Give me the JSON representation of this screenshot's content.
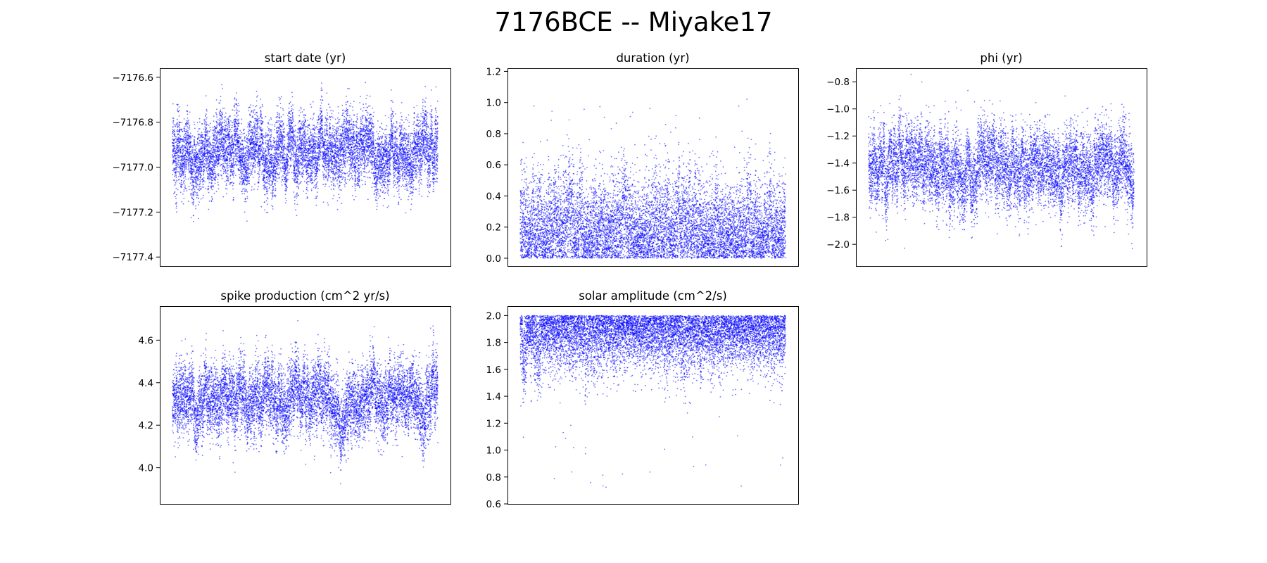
{
  "figure": {
    "suptitle": "7176BCE -- Miyake17"
  },
  "style": {
    "point_color": "#0000ff",
    "background": "#ffffff",
    "axis_color": "#000000"
  },
  "chart_data": [
    {
      "type": "scatter",
      "title": "start date (yr)",
      "xlabel": "",
      "ylabel": "",
      "ylim": [
        -7177.44,
        -7176.56
      ],
      "yticks": [
        -7176.6,
        -7176.8,
        -7177.0,
        -7177.2,
        -7177.4
      ],
      "ytick_labels": [
        "−7176.6",
        "−7176.8",
        "−7177.0",
        "−7177.2",
        "−7177.4"
      ],
      "x_ticks_visible": false,
      "samples": 10000,
      "center": -7176.93,
      "spread": 0.09,
      "min": -7177.39,
      "max": -7176.57
    },
    {
      "type": "scatter",
      "title": "duration (yr)",
      "xlabel": "",
      "ylabel": "",
      "ylim": [
        -0.05,
        1.22
      ],
      "yticks": [
        0.0,
        0.2,
        0.4,
        0.6,
        0.8,
        1.0,
        1.2
      ],
      "ytick_labels": [
        "0.0",
        "0.2",
        "0.4",
        "0.6",
        "0.8",
        "1.0",
        "1.2"
      ],
      "x_ticks_visible": false,
      "samples": 10000,
      "center": 0.2,
      "spread": 0.18,
      "min": 0.0,
      "max": 1.17
    },
    {
      "type": "scatter",
      "title": "phi (yr)",
      "xlabel": "",
      "ylabel": "",
      "ylim": [
        -2.16,
        -0.7
      ],
      "yticks": [
        -0.8,
        -1.0,
        -1.2,
        -1.4,
        -1.6,
        -1.8,
        -2.0
      ],
      "ytick_labels": [
        "−0.8",
        "−1.0",
        "−1.2",
        "−1.4",
        "−1.6",
        "−1.8",
        "−2.0"
      ],
      "x_ticks_visible": false,
      "samples": 10000,
      "center": -1.42,
      "spread": 0.17,
      "min": -2.1,
      "max": -0.72
    },
    {
      "type": "scatter",
      "title": "spike production (cm^2 yr/s)",
      "xlabel": "",
      "ylabel": "",
      "ylim": [
        3.83,
        4.76
      ],
      "yticks": [
        4.0,
        4.2,
        4.4,
        4.6
      ],
      "ytick_labels": [
        "4.0",
        "4.2",
        "4.4",
        "4.6"
      ],
      "x_ticks_visible": false,
      "samples": 10000,
      "center": 4.31,
      "spread": 0.1,
      "min": 3.88,
      "max": 4.72
    },
    {
      "type": "scatter",
      "title": "solar amplitude (cm^2/s)",
      "xlabel": "",
      "ylabel": "",
      "ylim": [
        0.6,
        2.07
      ],
      "yticks": [
        0.6,
        0.8,
        1.0,
        1.2,
        1.4,
        1.6,
        1.8,
        2.0
      ],
      "ytick_labels": [
        "0.6",
        "0.8",
        "1.0",
        "1.2",
        "1.4",
        "1.6",
        "1.8",
        "2.0"
      ],
      "x_ticks_visible": false,
      "samples": 10000,
      "center": 1.82,
      "spread": 0.17,
      "min": 0.66,
      "max": 2.0
    }
  ]
}
